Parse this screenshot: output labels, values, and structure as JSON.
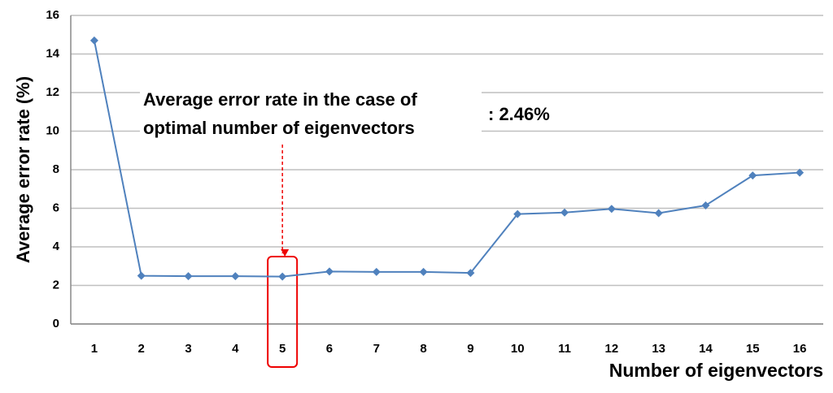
{
  "chart_data": {
    "type": "line",
    "x_label": "Number of eigenvectors",
    "y_label": "Average error rate (%)",
    "annotation": {
      "lines": [
        "Average error rate in the case of",
        "optimal number of eigenvectors"
      ],
      "value_text": ": 2.46%"
    },
    "categories": [
      "1",
      "2",
      "3",
      "4",
      "5",
      "6",
      "7",
      "8",
      "9",
      "10",
      "11",
      "12",
      "13",
      "14",
      "15",
      "16"
    ],
    "series": [
      {
        "name": "Average error rate",
        "color": "#4f81bd",
        "values": [
          14.7,
          2.5,
          2.48,
          2.48,
          2.46,
          2.72,
          2.7,
          2.7,
          2.65,
          5.7,
          5.78,
          5.97,
          5.75,
          6.15,
          7.7,
          7.85
        ]
      }
    ],
    "highlight_index": 4,
    "ylim": [
      0,
      16
    ],
    "yticks": [
      0,
      2,
      4,
      6,
      8,
      10,
      12,
      14,
      16
    ],
    "grid": true
  }
}
